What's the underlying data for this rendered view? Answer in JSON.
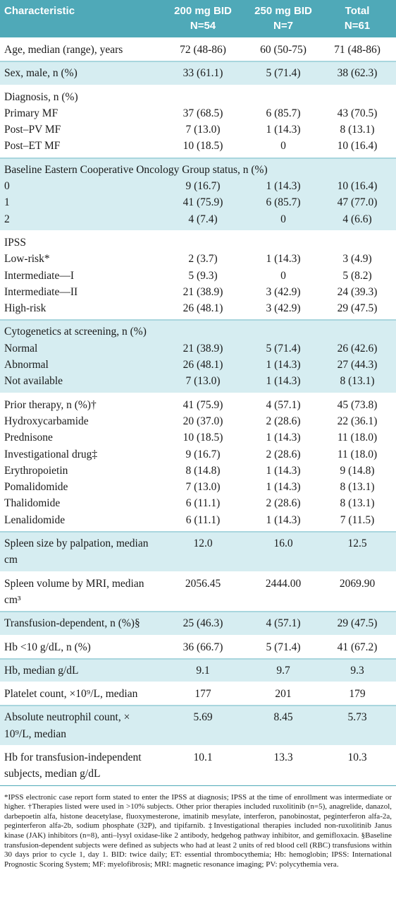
{
  "table": {
    "header": [
      [
        "Characteristic"
      ],
      [
        "200 mg BID",
        "N=54"
      ],
      [
        "250 mg BID",
        "N=7"
      ],
      [
        "Total",
        "N=61"
      ]
    ],
    "groups": [
      {
        "rows": [
          [
            "Age, median (range), years",
            "72 (48-86)",
            "60 (50-75)",
            "71 (48-86)"
          ]
        ]
      },
      {
        "rows": [
          [
            "Sex, male, n (%)",
            "33 (61.1)",
            "5 (71.4)",
            "38 (62.3)"
          ]
        ]
      },
      {
        "rows": [
          [
            "Diagnosis, n (%)"
          ],
          [
            "Primary MF",
            "37 (68.5)",
            "6 (85.7)",
            "43 (70.5)"
          ],
          [
            "Post–PV MF",
            "7 (13.0)",
            "1 (14.3)",
            "8 (13.1)"
          ],
          [
            "Post–ET MF",
            "10 (18.5)",
            "0",
            "10 (16.4)"
          ]
        ]
      },
      {
        "rows": [
          [
            "Baseline Eastern Cooperative Oncology Group status, n (%)"
          ],
          [
            "0",
            "9 (16.7)",
            "1 (14.3)",
            "10 (16.4)"
          ],
          [
            "1",
            "41 (75.9)",
            "6 (85.7)",
            "47 (77.0)"
          ],
          [
            "2",
            "4 (7.4)",
            "0",
            "4 (6.6)"
          ]
        ]
      },
      {
        "rows": [
          [
            "IPSS"
          ],
          [
            "Low-risk*",
            "2 (3.7)",
            "1 (14.3)",
            "3 (4.9)"
          ],
          [
            "Intermediate—I",
            "5 (9.3)",
            "0",
            "5 (8.2)"
          ],
          [
            "Intermediate—II",
            "21 (38.9)",
            "3 (42.9)",
            "24 (39.3)"
          ],
          [
            "High-risk",
            "26 (48.1)",
            "3 (42.9)",
            "29 (47.5)"
          ]
        ]
      },
      {
        "rows": [
          [
            "Cytogenetics at screening, n (%)"
          ],
          [
            "Normal",
            "21 (38.9)",
            "5 (71.4)",
            "26 (42.6)"
          ],
          [
            "Abnormal",
            "26 (48.1)",
            "1 (14.3)",
            "27 (44.3)"
          ],
          [
            "Not available",
            "7 (13.0)",
            "1 (14.3)",
            "8 (13.1)"
          ]
        ]
      },
      {
        "rows": [
          [
            "Prior therapy, n (%)†",
            "41 (75.9)",
            "4 (57.1)",
            "45 (73.8)"
          ],
          [
            "Hydroxycarbamide",
            "20 (37.0)",
            "2 (28.6)",
            "22 (36.1)"
          ],
          [
            "Prednisone",
            "10 (18.5)",
            "1 (14.3)",
            "11 (18.0)"
          ],
          [
            "Investigational drug‡",
            "9 (16.7)",
            "2 (28.6)",
            "11 (18.0)"
          ],
          [
            "Erythropoietin",
            "8 (14.8)",
            "1 (14.3)",
            "9 (14.8)"
          ],
          [
            "Pomalidomide",
            "7 (13.0)",
            "1 (14.3)",
            "8 (13.1)"
          ],
          [
            "Thalidomide",
            "6 (11.1)",
            "2 (28.6)",
            "8 (13.1)"
          ],
          [
            "Lenalidomide",
            "6 (11.1)",
            "1 (14.3)",
            "7 (11.5)"
          ]
        ]
      },
      {
        "rows": [
          [
            "Spleen size by palpation, median cm",
            "12.0",
            "16.0",
            "12.5"
          ]
        ]
      },
      {
        "rows": [
          [
            "Spleen volume by MRI, median cm³",
            "2056.45",
            "2444.00",
            "2069.90"
          ]
        ]
      },
      {
        "rows": [
          [
            "Transfusion-dependent, n (%)§",
            "25 (46.3)",
            "4 (57.1)",
            "29 (47.5)"
          ]
        ]
      },
      {
        "rows": [
          [
            "Hb <10 g/dL, n (%)",
            "36 (66.7)",
            "5 (71.4)",
            "41 (67.2)"
          ]
        ]
      },
      {
        "rows": [
          [
            "Hb, median g/dL",
            "9.1",
            "9.7",
            "9.3"
          ]
        ]
      },
      {
        "rows": [
          [
            "Platelet count, ×10⁹/L, median",
            "177",
            "201",
            "179"
          ]
        ]
      },
      {
        "rows": [
          [
            "Absolute neutrophil count, × 10⁹/L, median",
            "5.69",
            "8.45",
            "5.73"
          ]
        ]
      },
      {
        "rows": [
          [
            "Hb for transfusion-independent subjects, median g/dL",
            "10.1",
            "13.3",
            "10.3"
          ]
        ]
      }
    ]
  },
  "footnote": "*IPSS electronic case report form stated to enter the IPSS at diagnosis; IPSS at the time of enrollment was intermediate or higher. †Therapies listed were used in >10% subjects. Other prior therapies included ruxolitinib (n=5), anagrelide, danazol, darbepoetin alfa, histone deacetylase, fluoxymesterone, imatinib mesylate, interferon, panobinostat, peginterferon alfa-2a, peginterferon alfa-2b, sodium phosphate (32P), and tipifarnib. ‡Investigational therapies included non-ruxolitinib Janus kinase (JAK) inhibitors (n=8), anti–lysyl oxidase-like 2 antibody, hedgehog pathway inhibitor, and gemifloxacin. §Baseline transfusion-dependent subjects were defined as subjects who had at least 2 units of red blood cell (RBC) transfusions within 30 days prior to cycle 1, day 1. BID: twice daily; ET: essential thrombocythemia; Hb: hemoglobin; IPSS: International Prognostic Scoring System; MF: myelofibrosis; MRI: magnetic resonance imaging; PV: polycythemia vera."
}
